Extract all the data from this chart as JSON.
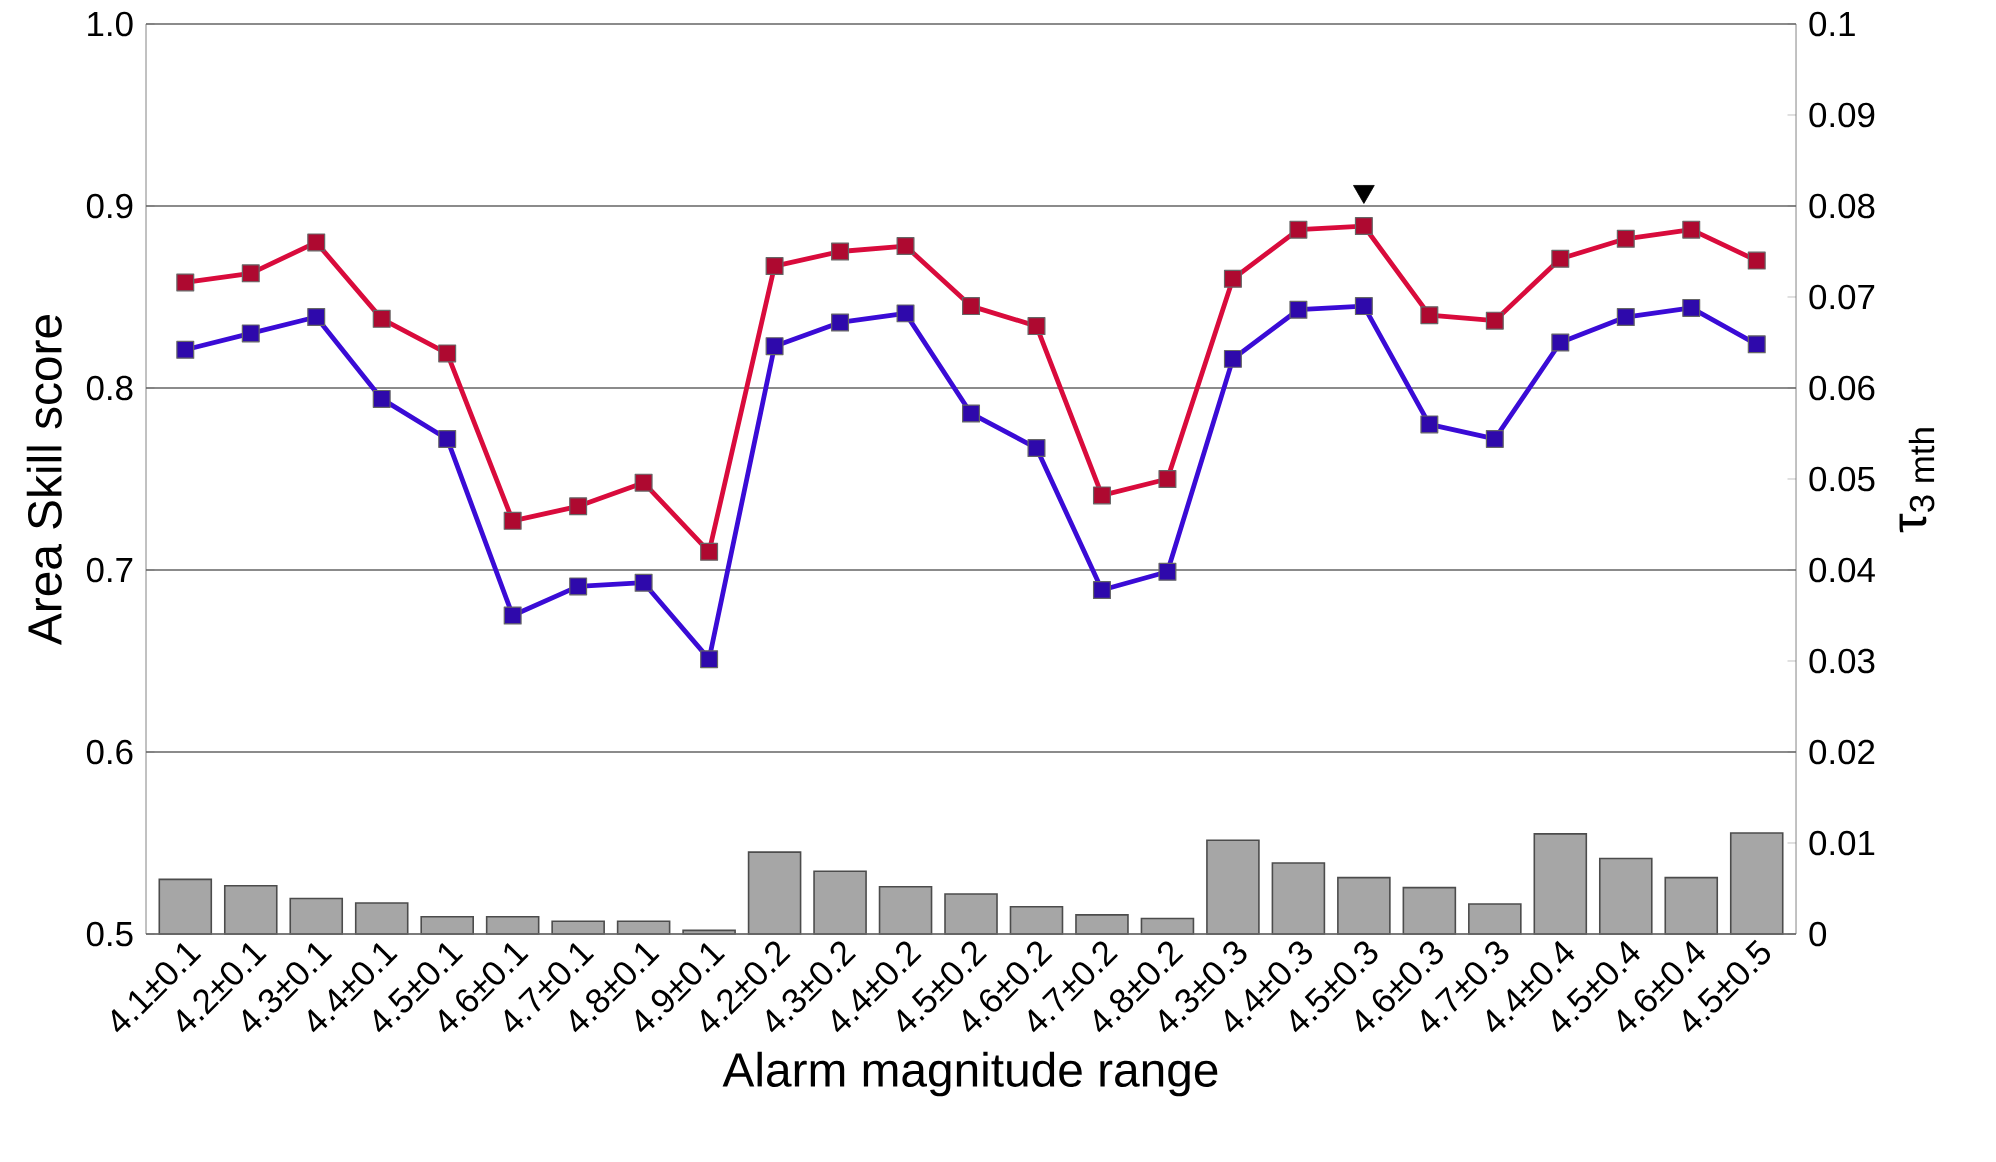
{
  "chart_data": {
    "type": "line",
    "xlabel": "Alarm magnitude range",
    "ylabel": "Area Skill score",
    "y2label": "τ$_{3 mth}$",
    "categories": [
      "4.1±0.1",
      "4.2±0.1",
      "4.3±0.1",
      "4.4±0.1",
      "4.5±0.1",
      "4.6±0.1",
      "4.7±0.1",
      "4.8±0.1",
      "4.9±0.1",
      "4.2±0.2",
      "4.3±0.2",
      "4.4±0.2",
      "4.5±0.2",
      "4.6±0.2",
      "4.7±0.2",
      "4.8±0.2",
      "4.3±0.3",
      "4.4±0.3",
      "4.5±0.3",
      "4.6±0.3",
      "4.7±0.3",
      "4.4±0.4",
      "4.5±0.4",
      "4.6±0.4",
      "4.5±0.5"
    ],
    "series": [
      {
        "type": "bar",
        "axis": "y2",
        "color": "#a6a6a6",
        "values": [
          0.006,
          0.0053,
          0.0039,
          0.0034,
          0.0019,
          0.0019,
          0.0014,
          0.0014,
          0.0004,
          0.009,
          0.0069,
          0.0052,
          0.0044,
          0.003,
          0.0021,
          0.0017,
          0.0103,
          0.0078,
          0.0062,
          0.0051,
          0.0033,
          0.011,
          0.0083,
          0.0062,
          0.0111
        ]
      },
      {
        "color": "#d90b3c",
        "values": [
          0.858,
          0.863,
          0.88,
          0.838,
          0.819,
          0.727,
          0.735,
          0.748,
          0.71,
          0.867,
          0.875,
          0.878,
          0.845,
          0.834,
          0.741,
          0.75,
          0.86,
          0.887,
          0.889,
          0.84,
          0.837,
          0.871,
          0.882,
          0.887,
          0.87
        ]
      },
      {
        "color": "#3a0bd6",
        "values": [
          0.821,
          0.83,
          0.839,
          0.794,
          0.772,
          0.675,
          0.691,
          0.693,
          0.651,
          0.823,
          0.836,
          0.841,
          0.786,
          0.767,
          0.689,
          0.699,
          0.816,
          0.843,
          0.845,
          0.78,
          0.772,
          0.825,
          0.839,
          0.844,
          0.824
        ]
      },
      {
        "type": "scatter",
        "marker": "triangle",
        "color": "#000000",
        "x": [
          "4.5±0.3"
        ],
        "values": [
          0.908
        ]
      }
    ],
    "ylim": [
      0.5,
      1.0
    ],
    "yticks": [
      0.5,
      0.6,
      0.7,
      0.8,
      0.9,
      {
        "value": 1.0,
        "label": "1.0"
      }
    ],
    "y2lim": [
      0,
      0.1
    ],
    "y2ticks": [
      0,
      0.01,
      0.02,
      0.03,
      0.04,
      0.05,
      0.06,
      0.07,
      0.08,
      0.09,
      0.1
    ],
    "grid": "y",
    "marker": "square",
    "line_style": "solid"
  }
}
